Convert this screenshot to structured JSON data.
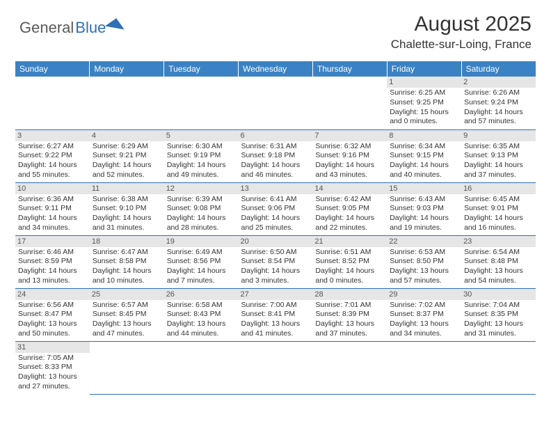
{
  "logo": {
    "text1": "General",
    "text2": "Blue"
  },
  "title": "August 2025",
  "subtitle": "Chalette-sur-Loing, France",
  "colors": {
    "header_bg": "#3b82c4",
    "header_text": "#ffffff",
    "cell_border": "#2d6fb5",
    "daynum_bg": "#e6e6e6",
    "text": "#333333",
    "logo_gray": "#5a5a5a",
    "logo_blue": "#2d6fb5"
  },
  "fonts": {
    "title_size": 30,
    "subtitle_size": 17,
    "header_size": 12,
    "cell_size": 10.5,
    "logo_size": 22
  },
  "weekdays": [
    "Sunday",
    "Monday",
    "Tuesday",
    "Wednesday",
    "Thursday",
    "Friday",
    "Saturday"
  ],
  "weeks": [
    [
      null,
      null,
      null,
      null,
      null,
      {
        "n": "1",
        "sr": "6:25 AM",
        "ss": "9:25 PM",
        "dl": "15 hours and 0 minutes."
      },
      {
        "n": "2",
        "sr": "6:26 AM",
        "ss": "9:24 PM",
        "dl": "14 hours and 57 minutes."
      }
    ],
    [
      {
        "n": "3",
        "sr": "6:27 AM",
        "ss": "9:22 PM",
        "dl": "14 hours and 55 minutes."
      },
      {
        "n": "4",
        "sr": "6:29 AM",
        "ss": "9:21 PM",
        "dl": "14 hours and 52 minutes."
      },
      {
        "n": "5",
        "sr": "6:30 AM",
        "ss": "9:19 PM",
        "dl": "14 hours and 49 minutes."
      },
      {
        "n": "6",
        "sr": "6:31 AM",
        "ss": "9:18 PM",
        "dl": "14 hours and 46 minutes."
      },
      {
        "n": "7",
        "sr": "6:32 AM",
        "ss": "9:16 PM",
        "dl": "14 hours and 43 minutes."
      },
      {
        "n": "8",
        "sr": "6:34 AM",
        "ss": "9:15 PM",
        "dl": "14 hours and 40 minutes."
      },
      {
        "n": "9",
        "sr": "6:35 AM",
        "ss": "9:13 PM",
        "dl": "14 hours and 37 minutes."
      }
    ],
    [
      {
        "n": "10",
        "sr": "6:36 AM",
        "ss": "9:11 PM",
        "dl": "14 hours and 34 minutes."
      },
      {
        "n": "11",
        "sr": "6:38 AM",
        "ss": "9:10 PM",
        "dl": "14 hours and 31 minutes."
      },
      {
        "n": "12",
        "sr": "6:39 AM",
        "ss": "9:08 PM",
        "dl": "14 hours and 28 minutes."
      },
      {
        "n": "13",
        "sr": "6:41 AM",
        "ss": "9:06 PM",
        "dl": "14 hours and 25 minutes."
      },
      {
        "n": "14",
        "sr": "6:42 AM",
        "ss": "9:05 PM",
        "dl": "14 hours and 22 minutes."
      },
      {
        "n": "15",
        "sr": "6:43 AM",
        "ss": "9:03 PM",
        "dl": "14 hours and 19 minutes."
      },
      {
        "n": "16",
        "sr": "6:45 AM",
        "ss": "9:01 PM",
        "dl": "14 hours and 16 minutes."
      }
    ],
    [
      {
        "n": "17",
        "sr": "6:46 AM",
        "ss": "8:59 PM",
        "dl": "14 hours and 13 minutes."
      },
      {
        "n": "18",
        "sr": "6:47 AM",
        "ss": "8:58 PM",
        "dl": "14 hours and 10 minutes."
      },
      {
        "n": "19",
        "sr": "6:49 AM",
        "ss": "8:56 PM",
        "dl": "14 hours and 7 minutes."
      },
      {
        "n": "20",
        "sr": "6:50 AM",
        "ss": "8:54 PM",
        "dl": "14 hours and 3 minutes."
      },
      {
        "n": "21",
        "sr": "6:51 AM",
        "ss": "8:52 PM",
        "dl": "14 hours and 0 minutes."
      },
      {
        "n": "22",
        "sr": "6:53 AM",
        "ss": "8:50 PM",
        "dl": "13 hours and 57 minutes."
      },
      {
        "n": "23",
        "sr": "6:54 AM",
        "ss": "8:48 PM",
        "dl": "13 hours and 54 minutes."
      }
    ],
    [
      {
        "n": "24",
        "sr": "6:56 AM",
        "ss": "8:47 PM",
        "dl": "13 hours and 50 minutes."
      },
      {
        "n": "25",
        "sr": "6:57 AM",
        "ss": "8:45 PM",
        "dl": "13 hours and 47 minutes."
      },
      {
        "n": "26",
        "sr": "6:58 AM",
        "ss": "8:43 PM",
        "dl": "13 hours and 44 minutes."
      },
      {
        "n": "27",
        "sr": "7:00 AM",
        "ss": "8:41 PM",
        "dl": "13 hours and 41 minutes."
      },
      {
        "n": "28",
        "sr": "7:01 AM",
        "ss": "8:39 PM",
        "dl": "13 hours and 37 minutes."
      },
      {
        "n": "29",
        "sr": "7:02 AM",
        "ss": "8:37 PM",
        "dl": "13 hours and 34 minutes."
      },
      {
        "n": "30",
        "sr": "7:04 AM",
        "ss": "8:35 PM",
        "dl": "13 hours and 31 minutes."
      }
    ],
    [
      {
        "n": "31",
        "sr": "7:05 AM",
        "ss": "8:33 PM",
        "dl": "13 hours and 27 minutes."
      },
      null,
      null,
      null,
      null,
      null,
      null
    ]
  ],
  "labels": {
    "sunrise": "Sunrise:",
    "sunset": "Sunset:",
    "daylight": "Daylight:"
  }
}
